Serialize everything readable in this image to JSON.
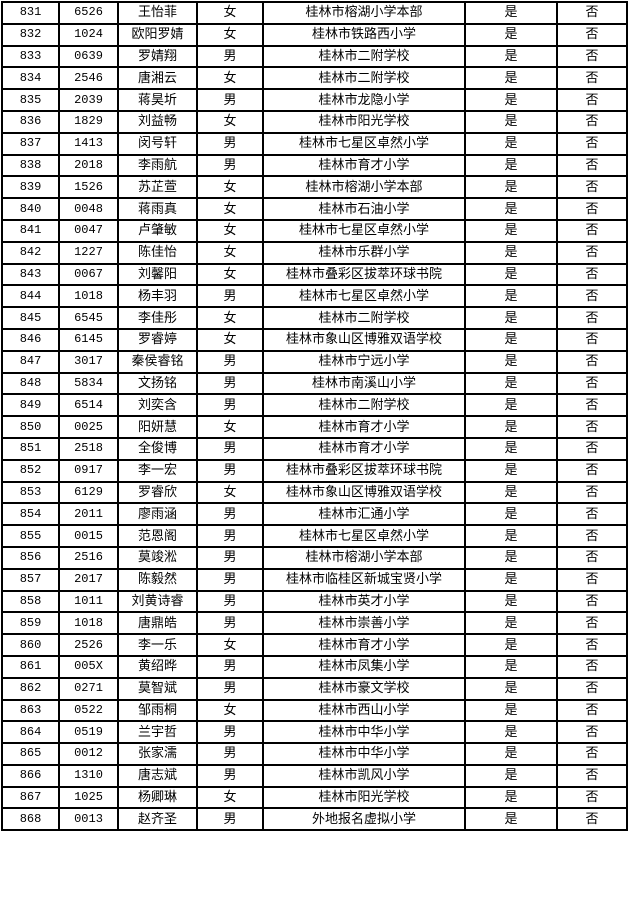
{
  "table": {
    "rows": [
      [
        "831",
        "6526",
        "王怡菲",
        "女",
        "桂林市榕湖小学本部",
        "是",
        "否"
      ],
      [
        "832",
        "1024",
        "欧阳罗婧",
        "女",
        "桂林市铁路西小学",
        "是",
        "否"
      ],
      [
        "833",
        "0639",
        "罗婧翔",
        "男",
        "桂林市二附学校",
        "是",
        "否"
      ],
      [
        "834",
        "2546",
        "唐湘云",
        "女",
        "桂林市二附学校",
        "是",
        "否"
      ],
      [
        "835",
        "2039",
        "蒋昊圻",
        "男",
        "桂林市龙隐小学",
        "是",
        "否"
      ],
      [
        "836",
        "1829",
        "刘益畅",
        "女",
        "桂林市阳光学校",
        "是",
        "否"
      ],
      [
        "837",
        "1413",
        "闵号轩",
        "男",
        "桂林市七星区卓然小学",
        "是",
        "否"
      ],
      [
        "838",
        "2018",
        "李雨航",
        "男",
        "桂林市育才小学",
        "是",
        "否"
      ],
      [
        "839",
        "1526",
        "苏芷萱",
        "女",
        "桂林市榕湖小学本部",
        "是",
        "否"
      ],
      [
        "840",
        "0048",
        "蒋雨真",
        "女",
        "桂林市石油小学",
        "是",
        "否"
      ],
      [
        "841",
        "0047",
        "卢肇敏",
        "女",
        "桂林市七星区卓然小学",
        "是",
        "否"
      ],
      [
        "842",
        "1227",
        "陈佳怡",
        "女",
        "桂林市乐群小学",
        "是",
        "否"
      ],
      [
        "843",
        "0067",
        "刘馨阳",
        "女",
        "桂林市叠彩区拔萃环球书院",
        "是",
        "否"
      ],
      [
        "844",
        "1018",
        "杨丰羽",
        "男",
        "桂林市七星区卓然小学",
        "是",
        "否"
      ],
      [
        "845",
        "6545",
        "李佳彤",
        "女",
        "桂林市二附学校",
        "是",
        "否"
      ],
      [
        "846",
        "6145",
        "罗睿婷",
        "女",
        "桂林市象山区博雅双语学校",
        "是",
        "否"
      ],
      [
        "847",
        "3017",
        "秦侯睿铭",
        "男",
        "桂林市宁远小学",
        "是",
        "否"
      ],
      [
        "848",
        "5834",
        "文扬铭",
        "男",
        "桂林市南溪山小学",
        "是",
        "否"
      ],
      [
        "849",
        "6514",
        "刘奕含",
        "男",
        "桂林市二附学校",
        "是",
        "否"
      ],
      [
        "850",
        "0025",
        "阳妍慧",
        "女",
        "桂林市育才小学",
        "是",
        "否"
      ],
      [
        "851",
        "2518",
        "全俊博",
        "男",
        "桂林市育才小学",
        "是",
        "否"
      ],
      [
        "852",
        "0917",
        "李一宏",
        "男",
        "桂林市叠彩区拔萃环球书院",
        "是",
        "否"
      ],
      [
        "853",
        "6129",
        "罗睿欣",
        "女",
        "桂林市象山区博雅双语学校",
        "是",
        "否"
      ],
      [
        "854",
        "2011",
        "廖雨涵",
        "男",
        "桂林市汇通小学",
        "是",
        "否"
      ],
      [
        "855",
        "0015",
        "范恩阁",
        "男",
        "桂林市七星区卓然小学",
        "是",
        "否"
      ],
      [
        "856",
        "2516",
        "莫竣淞",
        "男",
        "桂林市榕湖小学本部",
        "是",
        "否"
      ],
      [
        "857",
        "2017",
        "陈毅然",
        "男",
        "桂林市临桂区新城宝贤小学",
        "是",
        "否"
      ],
      [
        "858",
        "1011",
        "刘黄诗睿",
        "男",
        "桂林市英才小学",
        "是",
        "否"
      ],
      [
        "859",
        "1018",
        "唐鼎皓",
        "男",
        "桂林市崇善小学",
        "是",
        "否"
      ],
      [
        "860",
        "2526",
        "李一乐",
        "女",
        "桂林市育才小学",
        "是",
        "否"
      ],
      [
        "861",
        "005X",
        "黄绍晔",
        "男",
        "桂林市凤集小学",
        "是",
        "否"
      ],
      [
        "862",
        "0271",
        "莫智斌",
        "男",
        "桂林市豪文学校",
        "是",
        "否"
      ],
      [
        "863",
        "0522",
        "邹雨桐",
        "女",
        "桂林市西山小学",
        "是",
        "否"
      ],
      [
        "864",
        "0519",
        "兰宇哲",
        "男",
        "桂林市中华小学",
        "是",
        "否"
      ],
      [
        "865",
        "0012",
        "张家濡",
        "男",
        "桂林市中华小学",
        "是",
        "否"
      ],
      [
        "866",
        "1310",
        "唐志斌",
        "男",
        "桂林市凯风小学",
        "是",
        "否"
      ],
      [
        "867",
        "1025",
        "杨卿琳",
        "女",
        "桂林市阳光学校",
        "是",
        "否"
      ],
      [
        "868",
        "0013",
        "赵齐圣",
        "男",
        "外地报名虚拟小学",
        "是",
        "否"
      ]
    ]
  }
}
